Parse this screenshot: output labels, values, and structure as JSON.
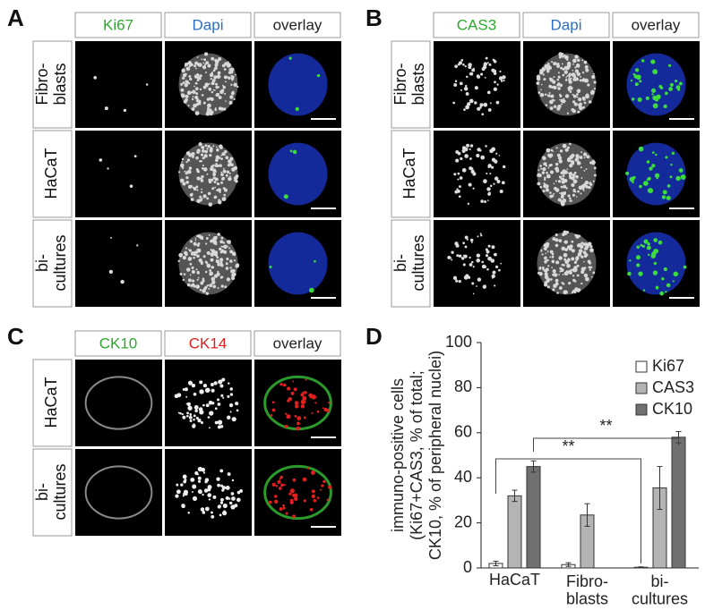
{
  "panels": [
    {
      "label": "A",
      "columns": [
        {
          "text": "Ki67",
          "color": "#2ea82e"
        },
        {
          "text": "Dapi",
          "color": "#2a6fc0"
        },
        {
          "text": "overlay",
          "color": "#222222"
        }
      ],
      "rows": [
        "Fibro-\nblasts",
        "HaCaT",
        "bi-\ncultures"
      ]
    },
    {
      "label": "B",
      "columns": [
        {
          "text": "CAS3",
          "color": "#2ea82e"
        },
        {
          "text": "Dapi",
          "color": "#2a6fc0"
        },
        {
          "text": "overlay",
          "color": "#222222"
        }
      ],
      "rows": [
        "Fibro-\nblasts",
        "HaCaT",
        "bi-\ncultures"
      ]
    },
    {
      "label": "C",
      "columns": [
        {
          "text": "CK10",
          "color": "#2ea82e"
        },
        {
          "text": "CK14",
          "color": "#e02020"
        },
        {
          "text": "overlay",
          "color": "#222222"
        }
      ],
      "rows": [
        "HaCaT",
        "bi-\ncultures"
      ]
    },
    {
      "label": "D"
    }
  ],
  "chart_data": {
    "type": "bar",
    "y_label": [
      "immuno-positive cells",
      "(Ki67+CAS3, % of total;",
      "CK10, % of peripheral nuclei)"
    ],
    "categories": [
      "HaCaT",
      "Fibro-\nblasts",
      "bi-\ncultures"
    ],
    "series": [
      {
        "name": "Ki67",
        "color": "#ffffff",
        "values": [
          2,
          1.5,
          0.3
        ],
        "errors": [
          1,
          0.8,
          0.2
        ]
      },
      {
        "name": "CAS3",
        "color": "#b4b4b4",
        "values": [
          32,
          23.5,
          35.5
        ],
        "errors": [
          2.5,
          5,
          9.5
        ]
      },
      {
        "name": "CK10",
        "color": "#707070",
        "values": [
          45,
          null,
          58
        ],
        "errors": [
          2.5,
          null,
          2.5
        ]
      }
    ],
    "ylim": [
      0,
      100
    ],
    "yticks": [
      0,
      20,
      40,
      60,
      80,
      100
    ],
    "annotations": [
      "**",
      "**"
    ],
    "legend": "upper right"
  }
}
